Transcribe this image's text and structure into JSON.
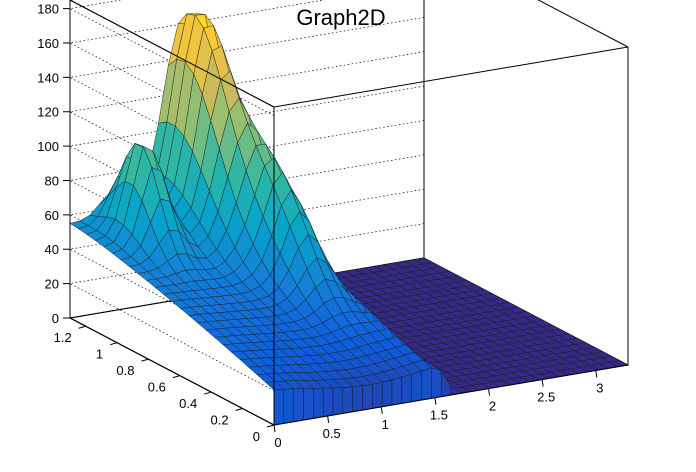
{
  "chart_data": {
    "type": "surface",
    "title": "Graph2D",
    "x_ticks": [
      "0",
      "0.5",
      "1",
      "1.5",
      "2",
      "2.5",
      "3"
    ],
    "y_ticks": [
      "0",
      "0.2",
      "0.4",
      "0.6",
      "0.8",
      "1",
      "1.2"
    ],
    "z_ticks": [
      "0",
      "20",
      "40",
      "60",
      "80",
      "100",
      "120",
      "140",
      "160",
      "180"
    ],
    "xlim": [
      0,
      3.3
    ],
    "ylim": [
      0,
      1.3
    ],
    "zlim": [
      0,
      185
    ],
    "grid": true,
    "colormap": [
      "#352a87",
      "#0f5cdd",
      "#1481d6",
      "#06a4ca",
      "#2eb7a4",
      "#87bf77",
      "#d1bb59",
      "#fec832",
      "#f9fb0e"
    ],
    "surface": {
      "description_points": [
        {
          "x": 1.0,
          "y": 1.25,
          "z": 175
        },
        {
          "x": 0.2,
          "y": 1.25,
          "z": 115
        },
        {
          "x": 0.0,
          "y": 1.25,
          "z": 50
        },
        {
          "x": 1.0,
          "y": 0.0,
          "z": 22
        },
        {
          "x": 2.0,
          "y": 0.6,
          "z": 0
        },
        {
          "x": 3.3,
          "y": 0.0,
          "z": 0
        }
      ]
    }
  }
}
